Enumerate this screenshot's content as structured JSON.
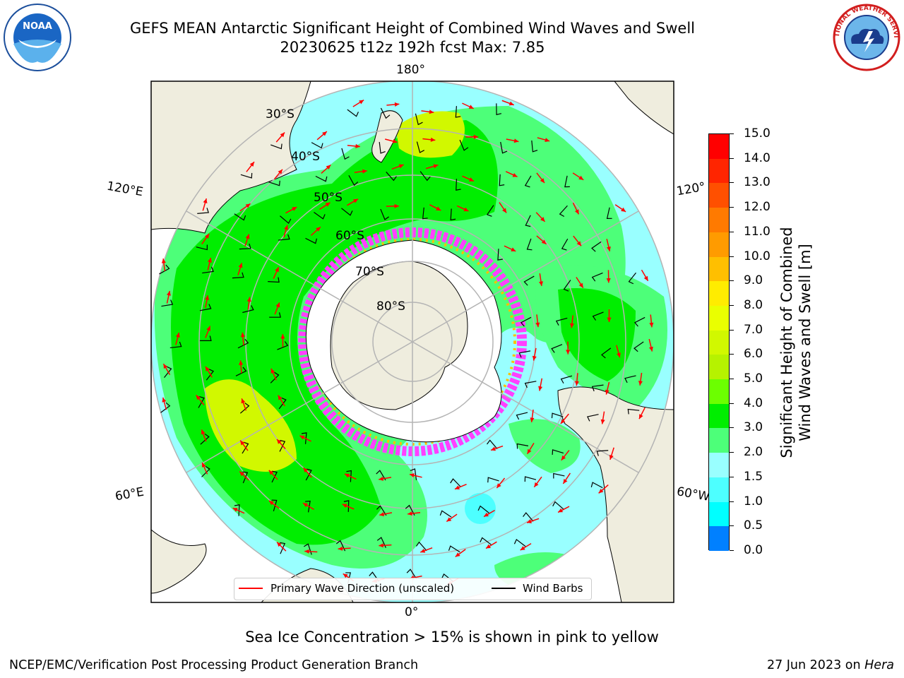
{
  "title": {
    "line1": "GEFS MEAN Antarctic Significant Height of Combined Wind Waves and Swell",
    "line2": "20230625 t12z 192h fcst   Max: 7.85"
  },
  "logos": {
    "noaa": "NOAA",
    "nws": "NATIONAL WEATHER SERVICE"
  },
  "map": {
    "longitude_labels": {
      "top": "180°",
      "bottom": "0°",
      "left_upper": "120°E",
      "right_upper": "120°",
      "left_lower": "60°E",
      "right_lower": "60°W"
    },
    "latitude_labels": [
      "30°S",
      "40°S",
      "50°S",
      "60°S",
      "70°S",
      "80°S"
    ],
    "colors": {
      "land": "#efedde",
      "ice_free_antarctica": "#ffffff",
      "sea_ice_edge": "#ff40ff",
      "wave_arrow": "#ff0000",
      "wind_barb": "#000000",
      "graticule": "#b4b4b4"
    }
  },
  "legend": {
    "primary_wave": "Primary Wave Direction (unscaled)",
    "wind_barbs": "Wind Barbs"
  },
  "colorbar": {
    "label_line1": "Significant Height of Combined",
    "label_line2": "Wind Waves and Swell [m]",
    "ticks": [
      "15.0",
      "14.0",
      "13.0",
      "12.0",
      "11.0",
      "10.0",
      "9.0",
      "8.0",
      "7.0",
      "6.0",
      "5.0",
      "4.0",
      "3.0",
      "2.0",
      "1.5",
      "1.0",
      "0.5",
      "0.0"
    ],
    "colors_top_to_bottom": [
      "#ff0000",
      "#ff2500",
      "#ff5000",
      "#ff7a00",
      "#ff9b00",
      "#ffbf00",
      "#ffec00",
      "#eaff00",
      "#d1f800",
      "#b6f200",
      "#6cff00",
      "#00ee00",
      "#4dff79",
      "#99ffff",
      "#4dffff",
      "#00ffff",
      "#0080ff",
      "#0000ff"
    ]
  },
  "note": "Sea Ice Concentration > 15% is shown in pink to yellow",
  "footer": {
    "left": "NCEP/EMC/Verification Post Processing Product Generation Branch",
    "right_date": "27 Jun 2023 on ",
    "right_host": "Hera"
  }
}
